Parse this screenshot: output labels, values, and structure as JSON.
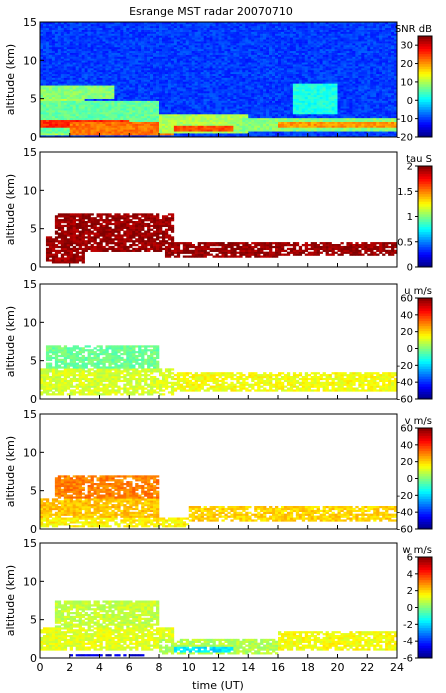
{
  "chart_data": {
    "type": "heatmap",
    "title": "Esrange MST radar 20070710",
    "xlabel": "time (UT)",
    "ylabel": "altitude (km)",
    "xlim": [
      0,
      24
    ],
    "ylim": [
      0,
      15
    ],
    "xticks": [
      0,
      2,
      4,
      6,
      8,
      10,
      12,
      14,
      16,
      18,
      20,
      22,
      24
    ],
    "yticks": [
      0,
      5,
      10,
      15
    ],
    "panels": [
      {
        "id": "snr",
        "variable": "SNR",
        "colorbar_label": "SNR dB",
        "range": [
          -20,
          35
        ],
        "ticks": [
          -20,
          -10,
          0,
          10,
          20,
          30
        ],
        "background_value": -10,
        "layers": [
          {
            "t0": 0,
            "t1": 3,
            "z0": 0.3,
            "z1": 5.5,
            "value": 10
          },
          {
            "t0": 0,
            "t1": 8,
            "z0": 0.6,
            "z1": 4.8,
            "value": 6
          },
          {
            "t0": 0,
            "t1": 6,
            "z0": 1.2,
            "z1": 2.2,
            "value": 26
          },
          {
            "t0": 2,
            "t1": 9,
            "z0": 0.3,
            "z1": 2.0,
            "value": 22
          },
          {
            "t0": 8,
            "t1": 14,
            "z0": 0.5,
            "z1": 3.0,
            "value": 10
          },
          {
            "t0": 9,
            "t1": 13,
            "z0": 0.8,
            "z1": 1.6,
            "value": 24
          },
          {
            "t0": 13,
            "t1": 24,
            "z0": 0.8,
            "z1": 2.6,
            "value": 8
          },
          {
            "t0": 16,
            "t1": 24,
            "z0": 1.2,
            "z1": 2.0,
            "value": 20
          },
          {
            "t0": 0,
            "t1": 5,
            "z0": 5.0,
            "z1": 6.8,
            "value": 8
          },
          {
            "t0": 17,
            "t1": 20,
            "z0": 3.0,
            "z1": 7.0,
            "value": 2
          }
        ]
      },
      {
        "id": "tau",
        "variable": "tau",
        "colorbar_label": "tau S",
        "range": [
          0,
          2
        ],
        "ticks": [
          0,
          0.5,
          1,
          1.5,
          2
        ],
        "background_value": null,
        "layers": [
          {
            "t0": 1.0,
            "t1": 9.0,
            "z0": 2.0,
            "z1": 7.0,
            "value": 1.95
          },
          {
            "t0": 0.5,
            "t1": 3.0,
            "z0": 0.5,
            "z1": 4.0,
            "value": 1.95
          },
          {
            "t0": 8.5,
            "t1": 16.0,
            "z0": 1.2,
            "z1": 3.2,
            "value": 1.95
          },
          {
            "t0": 16.0,
            "t1": 24.0,
            "z0": 1.5,
            "z1": 3.2,
            "value": 1.95
          }
        ]
      },
      {
        "id": "u",
        "variable": "u",
        "colorbar_label": "u m/s",
        "range": [
          -60,
          60
        ],
        "ticks": [
          -60,
          -40,
          -20,
          0,
          20,
          40,
          60
        ],
        "background_value": null,
        "layers": [
          {
            "t0": 0.5,
            "t1": 8.0,
            "z0": 4.0,
            "z1": 7.0,
            "value": -2
          },
          {
            "t0": 0.0,
            "t1": 9.0,
            "z0": 0.5,
            "z1": 4.0,
            "value": 10
          },
          {
            "t0": 9.0,
            "t1": 24.0,
            "z0": 1.0,
            "z1": 3.5,
            "value": 14
          }
        ]
      },
      {
        "id": "v",
        "variable": "v",
        "colorbar_label": "v m/s",
        "range": [
          -60,
          60
        ],
        "ticks": [
          -60,
          -40,
          -20,
          0,
          20,
          40,
          60
        ],
        "background_value": null,
        "layers": [
          {
            "t0": 1.0,
            "t1": 8.0,
            "z0": 4.0,
            "z1": 7.0,
            "value": 30
          },
          {
            "t0": 0.0,
            "t1": 8.0,
            "z0": 1.5,
            "z1": 4.0,
            "value": 22
          },
          {
            "t0": 0.0,
            "t1": 10.0,
            "z0": 0.3,
            "z1": 1.5,
            "value": 16
          },
          {
            "t0": 10.0,
            "t1": 24.0,
            "z0": 1.0,
            "z1": 3.0,
            "value": 20
          }
        ]
      },
      {
        "id": "w",
        "variable": "w",
        "colorbar_label": "w m/s",
        "range": [
          -6,
          6
        ],
        "ticks": [
          -6,
          -4,
          -2,
          0,
          2,
          4,
          6
        ],
        "background_value": null,
        "layers": [
          {
            "t0": 1.0,
            "t1": 8.0,
            "z0": 4.0,
            "z1": 7.5,
            "value": 0.8
          },
          {
            "t0": 0.0,
            "t1": 9.0,
            "z0": 1.0,
            "z1": 4.0,
            "value": 1.2
          },
          {
            "t0": 8.0,
            "t1": 16.0,
            "z0": 0.5,
            "z1": 2.5,
            "value": 0.6
          },
          {
            "t0": 9.0,
            "t1": 13.0,
            "z0": 0.8,
            "z1": 1.6,
            "value": -1.8
          },
          {
            "t0": 16.0,
            "t1": 24.0,
            "z0": 1.0,
            "z1": 3.5,
            "value": 1.4
          },
          {
            "t0": 2.0,
            "t1": 7.0,
            "z0": 0.2,
            "z1": 0.6,
            "value": -5.0
          }
        ]
      }
    ]
  }
}
